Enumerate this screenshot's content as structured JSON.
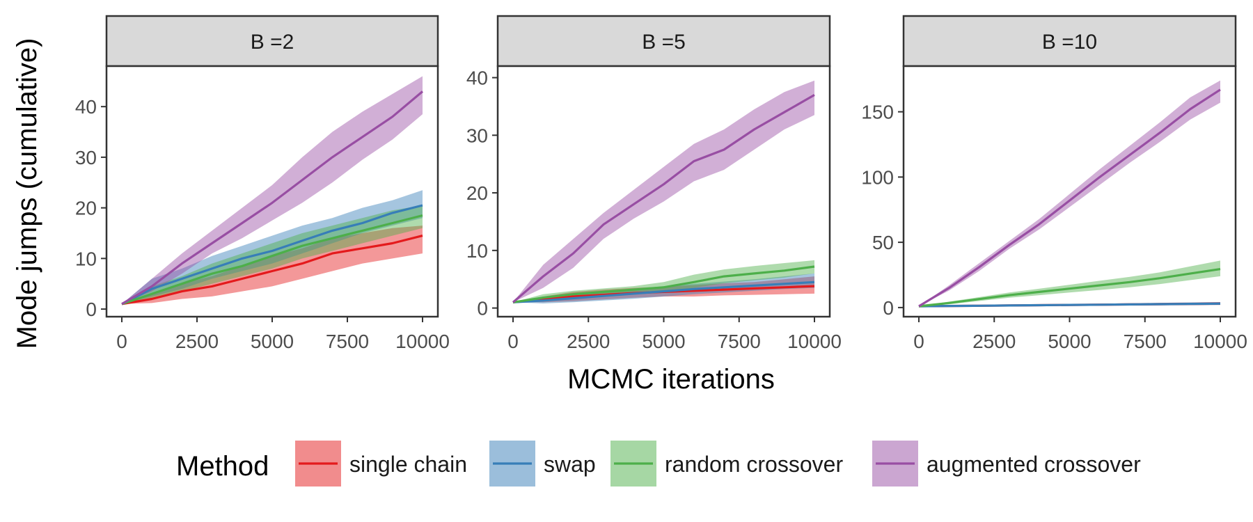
{
  "chart_data": {
    "type": "line",
    "xlabel": "MCMC iterations",
    "ylabel": "Mode jumps (cumulative)",
    "x_ticks": [
      0,
      2500,
      5000,
      7500,
      10000
    ],
    "x_tick_labels": [
      "0",
      "2500",
      "5000",
      "7500",
      "10000"
    ],
    "xlim": [
      0,
      10000
    ],
    "x": [
      0,
      1000,
      2000,
      3000,
      4000,
      5000,
      6000,
      7000,
      8000,
      9000,
      10000
    ],
    "legend": {
      "title": "Method",
      "position": "bottom",
      "entries": [
        "single chain",
        "swap",
        "random crossover",
        "augmented crossover"
      ]
    },
    "colors": {
      "single chain": "#e41a1c",
      "swap": "#377eb8",
      "random crossover": "#4daf4a",
      "augmented crossover": "#984ea3"
    },
    "panels": [
      {
        "strip": "B =2",
        "ylim": [
          -1.5,
          48
        ],
        "y_ticks": [
          0,
          10,
          20,
          30,
          40
        ],
        "y_tick_labels": [
          "0",
          "10",
          "20",
          "30",
          "40"
        ],
        "series": [
          {
            "name": "single chain",
            "values": [
              1,
              2,
              3.5,
              4.5,
              6,
              7.5,
              9,
              11,
              12,
              13,
              14.5
            ],
            "lower": [
              1,
              1.2,
              2,
              2.5,
              3.5,
              4.5,
              6,
              7.5,
              9,
              10,
              11
            ],
            "upper": [
              1,
              3,
              5,
              6.5,
              8.5,
              10.5,
              12,
              14,
              15,
              16,
              16.5
            ]
          },
          {
            "name": "swap",
            "values": [
              1,
              4,
              6,
              8,
              10,
              11.5,
              13.5,
              15.5,
              17,
              19,
              20.5
            ],
            "lower": [
              1,
              2.5,
              4,
              6,
              7.5,
              9,
              11,
              13,
              15,
              16.5,
              18
            ],
            "upper": [
              1,
              6,
              8,
              10.5,
              12.5,
              14.5,
              16.5,
              18,
              20,
              21.5,
              23.5
            ]
          },
          {
            "name": "random crossover",
            "values": [
              1,
              3,
              5,
              7,
              8.5,
              10.5,
              12.5,
              14,
              15.5,
              17,
              18.5
            ],
            "lower": [
              1,
              2,
              3.5,
              5,
              6.5,
              8,
              10,
              11.5,
              13,
              14.5,
              16
            ],
            "upper": [
              1,
              4.5,
              6.5,
              9,
              11,
              13,
              15,
              16.5,
              18,
              19.5,
              20.5
            ]
          },
          {
            "name": "augmented crossover",
            "values": [
              1,
              4.5,
              9,
              13,
              17,
              21,
              25.5,
              30,
              34,
              38,
              43
            ],
            "lower": [
              1,
              3.5,
              7,
              11,
              14,
              17.5,
              21,
              25,
              29.5,
              33.5,
              38.5
            ],
            "upper": [
              1,
              6,
              11,
              15.5,
              20,
              24.5,
              30,
              35,
              39,
              42.5,
              46
            ]
          }
        ]
      },
      {
        "strip": "B =5",
        "ylim": [
          -1.5,
          42
        ],
        "y_ticks": [
          0,
          10,
          20,
          30,
          40
        ],
        "y_tick_labels": [
          "0",
          "10",
          "20",
          "30",
          "40"
        ],
        "series": [
          {
            "name": "single chain",
            "values": [
              1,
              1.5,
              2,
              2.3,
              2.6,
              2.8,
              3,
              3.2,
              3.4,
              3.6,
              3.8
            ],
            "lower": [
              1,
              1,
              1.2,
              1.5,
              1.8,
              2,
              2,
              2.2,
              2.3,
              2.4,
              2.5
            ],
            "upper": [
              1,
              2,
              2.8,
              3.2,
              3.5,
              3.7,
              4,
              4.3,
              4.5,
              5,
              5.5
            ]
          },
          {
            "name": "swap",
            "values": [
              1,
              1.3,
              1.7,
              2.1,
              2.5,
              2.9,
              3.3,
              3.6,
              3.9,
              4.2,
              4.5
            ],
            "lower": [
              1,
              0.8,
              1,
              1.3,
              1.6,
              2,
              2.4,
              2.7,
              3,
              3.3,
              3.5
            ],
            "upper": [
              1,
              1.8,
              2.3,
              2.8,
              3.3,
              3.8,
              4.2,
              4.6,
              5,
              5.5,
              6
            ]
          },
          {
            "name": "random crossover",
            "values": [
              1,
              1.8,
              2.4,
              2.8,
              3.2,
              3.6,
              4.5,
              5.5,
              6,
              6.5,
              7.2
            ],
            "lower": [
              1,
              1.2,
              1.8,
              2.2,
              2.6,
              3,
              3.5,
              4.3,
              4.8,
              5.3,
              6
            ],
            "upper": [
              1,
              2.4,
              3,
              3.4,
              3.8,
              4.5,
              5.8,
              6.7,
              7.3,
              7.8,
              8.3
            ]
          },
          {
            "name": "augmented crossover",
            "values": [
              1,
              5.5,
              9.5,
              14.5,
              18,
              21.5,
              25.5,
              27.5,
              31,
              34,
              37
            ],
            "lower": [
              1,
              3.5,
              7,
              12,
              15.5,
              18.5,
              22,
              24,
              27.5,
              31,
              33.5
            ],
            "upper": [
              1,
              7.5,
              12,
              16.5,
              20.5,
              24.5,
              28.5,
              31,
              34.5,
              37.5,
              39.5
            ]
          }
        ]
      },
      {
        "strip": "B =10",
        "ylim": [
          -7,
          185
        ],
        "y_ticks": [
          0,
          50,
          100,
          150
        ],
        "y_tick_labels": [
          "0",
          "50",
          "100",
          "150"
        ],
        "series": [
          {
            "name": "single chain",
            "values": [
              1,
              1.2,
              1.4,
              1.6,
              1.8,
              2,
              2.2,
              2.4,
              2.6,
              2.8,
              3
            ],
            "lower": [
              1,
              1,
              1.1,
              1.2,
              1.3,
              1.4,
              1.5,
              1.6,
              1.7,
              1.8,
              2
            ],
            "upper": [
              1,
              1.5,
              1.8,
              2.1,
              2.4,
              2.7,
              3,
              3.3,
              3.6,
              3.9,
              4.2
            ]
          },
          {
            "name": "swap",
            "values": [
              1,
              1.2,
              1.4,
              1.6,
              1.8,
              2,
              2.2,
              2.4,
              2.6,
              2.8,
              3
            ],
            "lower": [
              1,
              1,
              1.1,
              1.2,
              1.3,
              1.4,
              1.5,
              1.6,
              1.7,
              1.8,
              2
            ],
            "upper": [
              1,
              1.5,
              1.8,
              2.1,
              2.4,
              2.7,
              3,
              3.3,
              3.6,
              3.9,
              4.2
            ]
          },
          {
            "name": "random crossover",
            "values": [
              1,
              3.5,
              6.5,
              9.5,
              12,
              14.5,
              17,
              19.5,
              22.5,
              26,
              29.5
            ],
            "lower": [
              1,
              2.5,
              5,
              7.5,
              9.5,
              11.5,
              13.5,
              15.5,
              18,
              21,
              24
            ],
            "upper": [
              1,
              4.5,
              8,
              11.5,
              14.5,
              17.5,
              20.5,
              23.5,
              27,
              31.5,
              36
            ]
          },
          {
            "name": "augmented crossover",
            "values": [
              1,
              15,
              31,
              48,
              64,
              82,
              100,
              117,
              134,
              152,
              167
            ],
            "lower": [
              1,
              13,
              28,
              45,
              60,
              77,
              94,
              111,
              127,
              144,
              157
            ],
            "upper": [
              1,
              17,
              34,
              51,
              68,
              87,
              106,
              124,
              142,
              161,
              174
            ]
          }
        ]
      }
    ]
  }
}
